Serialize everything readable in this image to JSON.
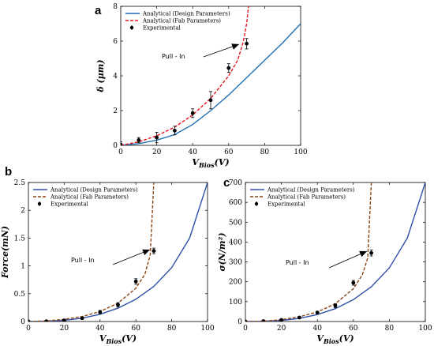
{
  "chart_data": [
    {
      "panel_label": "a",
      "type": "line",
      "title": "",
      "xlabel_main": "V",
      "xlabel_sub": "Bios",
      "xlabel_tail": "(V)",
      "ylabel": "δ (μm)",
      "xlim": [
        0,
        100
      ],
      "ylim": [
        0,
        8
      ],
      "xticks": [
        0,
        20,
        40,
        60,
        80,
        100
      ],
      "yticks": [
        0,
        2,
        4,
        6,
        8
      ],
      "legend_position": "top-left",
      "annotation": "Pull - In",
      "series": [
        {
          "name": "Analytical (Design Parameters)",
          "style": "solid",
          "color": "#1f6fb5",
          "x": [
            0,
            10,
            20,
            30,
            40,
            50,
            60,
            70,
            80,
            90,
            100
          ],
          "y": [
            0,
            0.1,
            0.3,
            0.62,
            1.2,
            2.0,
            2.9,
            3.9,
            4.9,
            5.9,
            7.0
          ]
        },
        {
          "name": "Analytical (Fab Parameters)",
          "style": "dashed",
          "color": "#e8141b",
          "x": [
            0,
            10,
            20,
            30,
            40,
            50,
            60,
            65,
            68,
            70,
            71
          ],
          "y": [
            0,
            0.2,
            0.55,
            1.05,
            1.75,
            2.7,
            4.0,
            4.9,
            5.9,
            7.0,
            8.0
          ]
        },
        {
          "name": "Experimental",
          "style": "marker",
          "color": "#000000",
          "x": [
            0,
            10,
            20,
            30,
            40,
            50,
            60,
            70
          ],
          "y": [
            0.05,
            0.3,
            0.45,
            0.85,
            1.85,
            2.6,
            4.45,
            5.85
          ],
          "err": [
            0.15,
            0.15,
            0.3,
            0.25,
            0.25,
            0.5,
            0.25,
            0.3
          ]
        }
      ]
    },
    {
      "panel_label": "b",
      "type": "line",
      "title": "",
      "xlabel_main": "V",
      "xlabel_sub": "Bios",
      "xlabel_tail": "(V)",
      "ylabel": "Force(mN)",
      "xlim": [
        0,
        100
      ],
      "ylim": [
        0,
        2.5
      ],
      "xticks": [
        0,
        20,
        40,
        60,
        80,
        100
      ],
      "yticks": [
        0,
        0.5,
        1,
        1.5,
        2,
        2.5
      ],
      "legend_position": "top-left",
      "annotation": "Pull - In",
      "series": [
        {
          "name": "Analytical (Design Parameters)",
          "style": "solid",
          "color": "#2f4fa8",
          "x": [
            0,
            10,
            20,
            30,
            40,
            50,
            60,
            70,
            80,
            90,
            100
          ],
          "y": [
            0,
            0.005,
            0.02,
            0.06,
            0.13,
            0.24,
            0.4,
            0.63,
            0.97,
            1.5,
            2.5
          ]
        },
        {
          "name": "Analytical (Fab Parameters)",
          "style": "dashed",
          "color": "#8b4513",
          "x": [
            0,
            10,
            20,
            30,
            40,
            50,
            60,
            65,
            68,
            70
          ],
          "y": [
            0,
            0.01,
            0.04,
            0.09,
            0.18,
            0.33,
            0.6,
            0.85,
            1.2,
            2.5
          ]
        },
        {
          "name": "Experimental",
          "style": "marker",
          "color": "#000000",
          "x": [
            0,
            10,
            20,
            30,
            40,
            50,
            60,
            70
          ],
          "y": [
            0,
            0.005,
            0.02,
            0.06,
            0.17,
            0.3,
            0.72,
            1.27
          ],
          "err": [
            0.01,
            0.01,
            0.02,
            0.02,
            0.03,
            0.04,
            0.05,
            0.05
          ]
        }
      ]
    },
    {
      "panel_label": "c",
      "type": "line",
      "title": "",
      "xlabel_main": "V",
      "xlabel_sub": "Bios",
      "xlabel_tail": "(V)",
      "ylabel": "σ(N/m²)",
      "xlim": [
        0,
        100
      ],
      "ylim": [
        0,
        700
      ],
      "xticks": [
        0,
        20,
        40,
        60,
        80,
        100
      ],
      "yticks": [
        0,
        100,
        200,
        300,
        400,
        500,
        600,
        700
      ],
      "legend_position": "top-left",
      "annotation": "Pull - In",
      "series": [
        {
          "name": "Analytical (Design Parameters)",
          "style": "solid",
          "color": "#2f4fa8",
          "x": [
            0,
            10,
            20,
            30,
            40,
            50,
            60,
            70,
            80,
            90,
            100
          ],
          "y": [
            0,
            1,
            5,
            16,
            35,
            65,
            110,
            175,
            270,
            420,
            700
          ]
        },
        {
          "name": "Analytical (Fab Parameters)",
          "style": "dashed",
          "color": "#8b4513",
          "x": [
            0,
            10,
            20,
            30,
            40,
            50,
            60,
            65,
            68,
            70
          ],
          "y": [
            0,
            2,
            9,
            24,
            48,
            90,
            165,
            235,
            320,
            700
          ]
        },
        {
          "name": "Experimental",
          "style": "marker",
          "color": "#000000",
          "x": [
            0,
            10,
            20,
            30,
            40,
            50,
            60,
            70
          ],
          "y": [
            0,
            2,
            8,
            20,
            45,
            80,
            195,
            345
          ],
          "err": [
            3,
            3,
            4,
            5,
            6,
            10,
            12,
            15
          ]
        }
      ]
    }
  ]
}
